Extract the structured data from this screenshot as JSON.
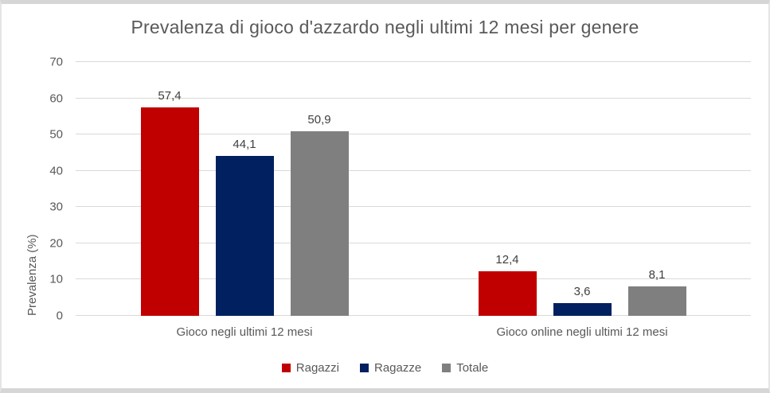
{
  "colors": {
    "grid": "#D9D9D9",
    "axis-text": "#595959",
    "data-label": "#404040",
    "title-text": "#595959",
    "frame": "#D6D6D6",
    "frame-side": "#E4E4E4",
    "background": "#FFFFFF"
  },
  "chart_data": {
    "type": "bar",
    "title": "Prevalenza di gioco d'azzardo negli ultimi 12 mesi per genere",
    "xlabel": "",
    "ylabel": "Prevalenza (%)",
    "categories": [
      "Gioco negli ultimi 12 mesi",
      "Gioco online negli ultimi 12 mesi"
    ],
    "series": [
      {
        "name": "Ragazzi",
        "color": "#C00000",
        "values": [
          57.4,
          12.4
        ],
        "labels": [
          "57,4",
          "12,4"
        ]
      },
      {
        "name": "Ragazze",
        "color": "#002060",
        "values": [
          44.1,
          3.6
        ],
        "labels": [
          "44,1",
          "3,6"
        ]
      },
      {
        "name": "Totale",
        "color": "#7F7F7F",
        "values": [
          50.9,
          8.1
        ],
        "labels": [
          "50,9",
          "8,1"
        ]
      }
    ],
    "ylim": [
      0,
      70
    ],
    "yticks": [
      0,
      10,
      20,
      30,
      40,
      50,
      60,
      70
    ],
    "grid": true,
    "legend_position": "bottom"
  }
}
